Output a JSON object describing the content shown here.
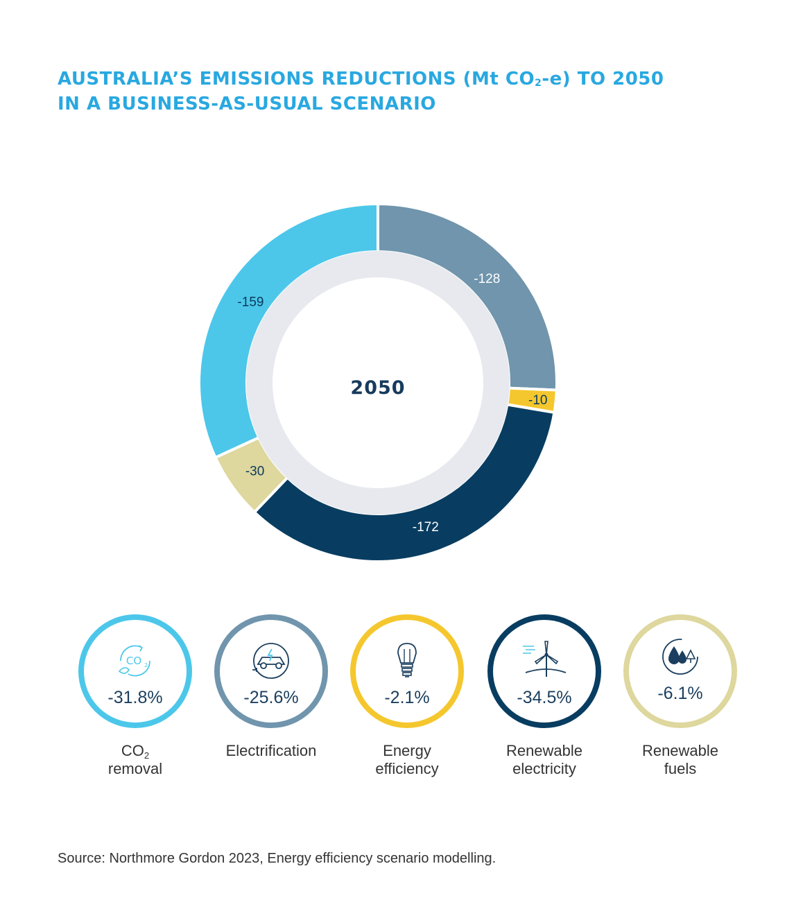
{
  "title_line1_pre": "AUSTRALIA’S EMISSIONS REDUCTIONS (Mt CO",
  "title_line1_sub": "2",
  "title_line1_post": "-e) TO 2050",
  "title_line2": "IN A BUSINESS-AS-USUAL SCENARIO",
  "chart_data": {
    "type": "pie",
    "center_label": "2050",
    "categories": [
      "Electrification",
      "Energy efficiency",
      "Renewable electricity",
      "Renewable fuels",
      "CO2 removal"
    ],
    "values": [
      -128,
      -10,
      -172,
      -30,
      -159
    ],
    "labels": [
      "-128",
      "-10",
      "-172",
      "-30",
      "-159"
    ],
    "colors": [
      "#7095ad",
      "#f5c72e",
      "#083d61",
      "#ded79e",
      "#4cc7ea"
    ],
    "label_colors": [
      "#ffffff",
      "#0b3a5b",
      "#ffffff",
      "#0b3a5b",
      "#0b3a5b"
    ]
  },
  "legend": [
    {
      "pct": "-31.8%",
      "label_pre": "CO",
      "label_sub": "2",
      "label_post": "",
      "label_line2": "removal",
      "color": "#4cc7ea",
      "icon": "co2-icon"
    },
    {
      "pct": "-25.6%",
      "label_pre": "Electrification",
      "label_sub": "",
      "label_post": "",
      "label_line2": "",
      "color": "#7095ad",
      "icon": "electric-car-icon"
    },
    {
      "pct": "-2.1%",
      "label_pre": "Energy",
      "label_sub": "",
      "label_post": "",
      "label_line2": "efficiency",
      "color": "#f5c72e",
      "icon": "lightbulb-icon"
    },
    {
      "pct": "-34.5%",
      "label_pre": "Renewable",
      "label_sub": "",
      "label_post": "",
      "label_line2": "electricity",
      "color": "#083d61",
      "icon": "wind-turbine-icon"
    },
    {
      "pct": "-6.1%",
      "label_pre": "Renewable",
      "label_sub": "",
      "label_post": "",
      "label_line2": "fuels",
      "color": "#ded79e",
      "icon": "fuel-drops-icon"
    }
  ],
  "source": "Source: Northmore Gordon 2023, Energy efficiency scenario modelling."
}
